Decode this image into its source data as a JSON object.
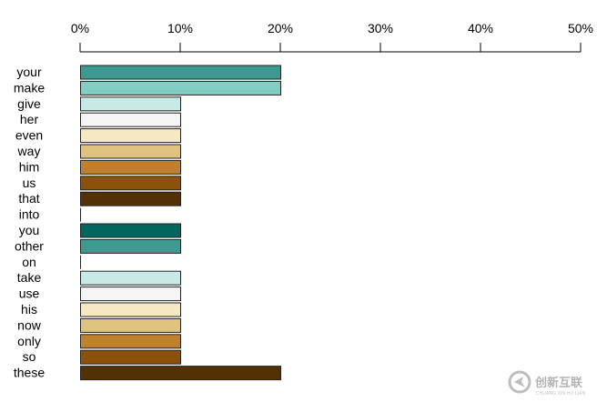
{
  "chart_data": {
    "type": "bar",
    "orientation": "horizontal",
    "categories": [
      "your",
      "make",
      "give",
      "her",
      "even",
      "way",
      "him",
      "us",
      "that",
      "into",
      "you",
      "other",
      "on",
      "take",
      "use",
      "his",
      "now",
      "only",
      "so",
      "these"
    ],
    "values": [
      20,
      20,
      10,
      10,
      10,
      10,
      10,
      10,
      10,
      0,
      10,
      10,
      0,
      10,
      10,
      10,
      10,
      10,
      10,
      20
    ],
    "colors": [
      "#3d9a91",
      "#80cdc1",
      "#c7eae5",
      "#f5f5f5",
      "#f6e8c3",
      "#dfc27d",
      "#bf812d",
      "#8c510a",
      "#543005",
      "#ffffff",
      "#01665e",
      "#3d9a91",
      "#ffffff",
      "#c7eae5",
      "#f5f5f5",
      "#f6e8c3",
      "#dfc27d",
      "#bf812d",
      "#8c510a",
      "#543005"
    ],
    "xlim": [
      0,
      50
    ],
    "xticks": [
      "0%",
      "10%",
      "20%",
      "30%",
      "40%",
      "50%"
    ],
    "axis_position": "top",
    "grid": false,
    "legend": "none"
  },
  "watermark": {
    "text": "创新互联",
    "subtext": "CHUANG XIN HU LIAN",
    "icon": "logo-swirl-icon"
  }
}
